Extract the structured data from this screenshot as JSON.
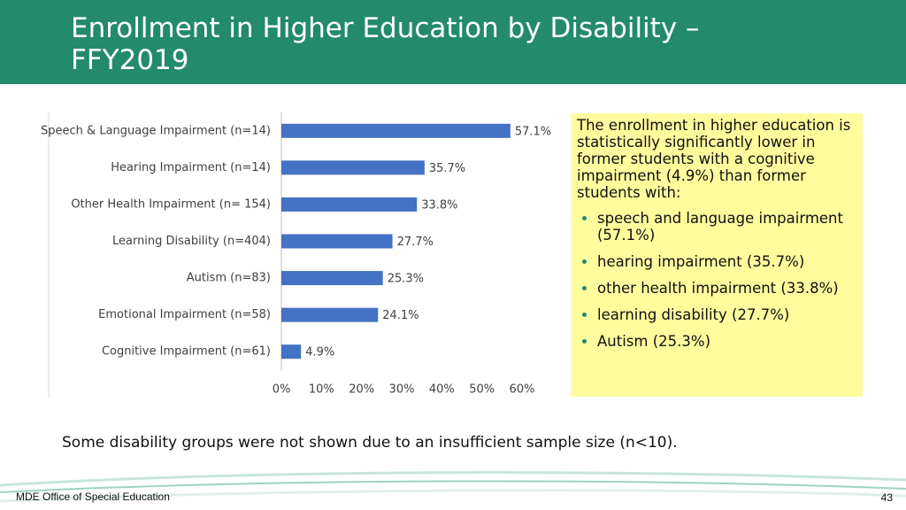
{
  "header": {
    "title": "Enrollment in Higher Education by Disability – FFY2019"
  },
  "chart_data": {
    "type": "hbar",
    "categories": [
      "Speech & Language Impairment (n=14)",
      "Hearing Impairment (n=14)",
      "Other Health Impairment (n= 154)",
      "Learning Disability (n=404)",
      "Autism (n=83)",
      "Emotional Impairment (n=58)",
      "Cognitive Impairment (n=61)"
    ],
    "values": [
      57.1,
      35.7,
      33.8,
      27.7,
      25.3,
      24.1,
      4.9
    ],
    "value_labels": [
      "57.1%",
      "35.7%",
      "33.8%",
      "27.7%",
      "25.3%",
      "24.1%",
      "4.9%"
    ],
    "color": "#4472c4",
    "xlim": [
      0,
      60
    ],
    "xticks": [
      {
        "value": 0,
        "label": "0%"
      },
      {
        "value": 10,
        "label": "10%"
      },
      {
        "value": 20,
        "label": "20%"
      },
      {
        "value": 30,
        "label": "30%"
      },
      {
        "value": 40,
        "label": "40%"
      },
      {
        "value": 50,
        "label": "50%"
      },
      {
        "value": 60,
        "label": "60%"
      }
    ],
    "grid": false
  },
  "callout": {
    "intro": "The enrollment in higher education is statistically significantly lower in former students with a cognitive impairment (4.9%) than former students with:",
    "bullets": [
      "speech and language impairment (57.1%)",
      "hearing impairment (35.7%)",
      "other health impairment (33.8%)",
      "learning disability (27.7%)",
      "Autism (25.3%)"
    ]
  },
  "note": "Some disability groups were not shown due to an insufficient sample size (n<10).",
  "footer": {
    "org": "MDE Office of Special Education",
    "page": "43"
  }
}
